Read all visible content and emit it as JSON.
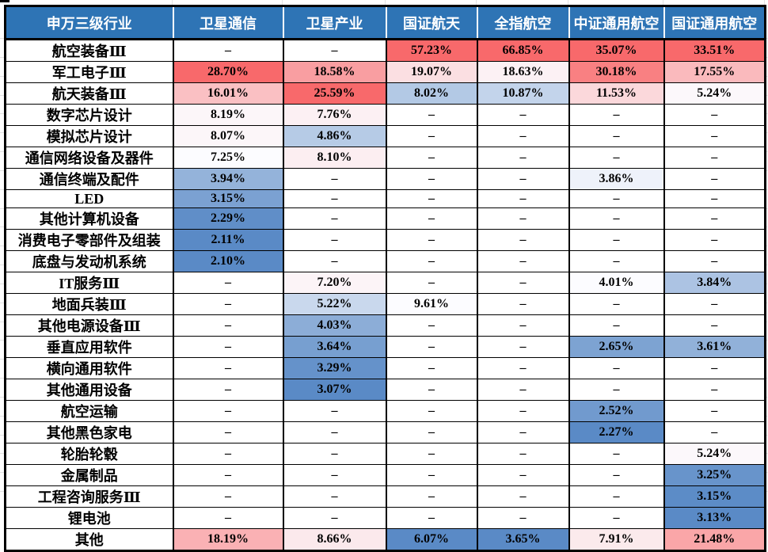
{
  "page": {
    "background": "#FFFFFF"
  },
  "colors": {
    "header_bg": "#2E74B5",
    "header_text": "#FFFFFF",
    "table_border": "#000000",
    "cell_text": "#000000",
    "margin_gridline": "#E3E3E3",
    "empty_cell_bg": "#FFFFFF",
    "scale_min": "#5A8AC6",
    "scale_mid": "#FCFCFF",
    "scale_max": "#F8696B"
  },
  "chart_data": {
    "type": "heatmap",
    "row_axis_label": "申万三级行业",
    "columns": [
      "卫星通信",
      "卫星产业",
      "国证航天",
      "全指航空",
      "中证通用航空",
      "国证通用航空"
    ],
    "rows": [
      "航空装备Ⅲ",
      "军工电子Ⅲ",
      "航天装备Ⅲ",
      "数字芯片设计",
      "模拟芯片设计",
      "通信网络设备及器件",
      "通信终端及配件",
      "LED",
      "其他计算机设备",
      "消费电子零部件及组装",
      "底盘与发动机系统",
      "IT服务Ⅲ",
      "地面兵装Ⅲ",
      "其他电源设备Ⅲ",
      "垂直应用软件",
      "横向通用软件",
      "其他通用设备",
      "航空运输",
      "其他黑色家电",
      "轮胎轮毂",
      "金属制品",
      "工程咨询服务Ⅲ",
      "锂电池",
      "其他"
    ],
    "values": [
      [
        null,
        null,
        57.23,
        66.85,
        35.07,
        33.51
      ],
      [
        28.7,
        18.58,
        19.07,
        18.63,
        30.18,
        17.55
      ],
      [
        16.01,
        25.59,
        8.02,
        10.87,
        11.53,
        5.24
      ],
      [
        8.19,
        7.76,
        null,
        null,
        null,
        null
      ],
      [
        8.07,
        4.86,
        null,
        null,
        null,
        null
      ],
      [
        7.25,
        8.1,
        null,
        null,
        null,
        null
      ],
      [
        3.94,
        null,
        null,
        null,
        3.86,
        null
      ],
      [
        3.15,
        null,
        null,
        null,
        null,
        null
      ],
      [
        2.29,
        null,
        null,
        null,
        null,
        null
      ],
      [
        2.11,
        null,
        null,
        null,
        null,
        null
      ],
      [
        2.1,
        null,
        null,
        null,
        null,
        null
      ],
      [
        null,
        7.2,
        null,
        null,
        4.01,
        3.84
      ],
      [
        null,
        5.22,
        9.61,
        null,
        null,
        null
      ],
      [
        null,
        4.03,
        null,
        null,
        null,
        null
      ],
      [
        null,
        3.64,
        null,
        null,
        2.65,
        3.61
      ],
      [
        null,
        3.29,
        null,
        null,
        null,
        null
      ],
      [
        null,
        3.07,
        null,
        null,
        null,
        null
      ],
      [
        null,
        null,
        null,
        null,
        2.52,
        null
      ],
      [
        null,
        null,
        null,
        null,
        2.27,
        null
      ],
      [
        null,
        null,
        null,
        null,
        null,
        5.24
      ],
      [
        null,
        null,
        null,
        null,
        null,
        3.25
      ],
      [
        null,
        null,
        null,
        null,
        null,
        3.15
      ],
      [
        null,
        null,
        null,
        null,
        null,
        3.13
      ],
      [
        18.19,
        8.66,
        6.07,
        3.65,
        7.91,
        21.48
      ]
    ],
    "unit": "%",
    "missing": "–",
    "color_scale": {
      "low": "#5A8AC6",
      "mid": "#FCFCFF",
      "high": "#F8696B",
      "scope": "per-column",
      "midpoint": "median"
    }
  }
}
